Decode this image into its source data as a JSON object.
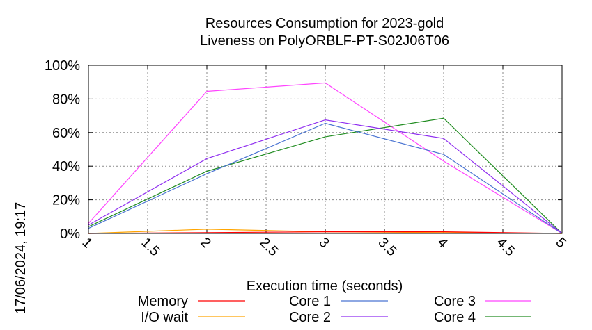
{
  "chart_data": {
    "type": "line",
    "title_line1": "Resources Consumption for 2023-gold",
    "title_line2": "Liveness on PolyORBLF-PT-S02J06T06",
    "xlabel": "Execution time (seconds)",
    "ylabel": "",
    "timestamp": "17/06/2024, 19:17",
    "xlim": [
      1,
      5
    ],
    "ylim": [
      0,
      100
    ],
    "grid": true,
    "legend_placement": "bottom",
    "x_ticks": [
      "1",
      "1.5",
      "2",
      "2.5",
      "3",
      "3.5",
      "4",
      "4.5",
      "5"
    ],
    "y_ticks": [
      "0%",
      "20%",
      "40%",
      "60%",
      "80%",
      "100%"
    ],
    "series": [
      {
        "name": "Memory",
        "color": "#ff0000",
        "x": [
          1,
          2,
          3,
          4,
          5
        ],
        "values": [
          0,
          0.5,
          1,
          1,
          0
        ]
      },
      {
        "name": "I/O wait",
        "color": "#ffa500",
        "x": [
          1,
          2,
          3,
          4,
          5
        ],
        "values": [
          0,
          2.5,
          1,
          0.5,
          0
        ]
      },
      {
        "name": "Core 1",
        "color": "#4a74d2",
        "x": [
          1,
          2,
          3,
          4,
          5
        ],
        "values": [
          3,
          35.5,
          65.5,
          47,
          0
        ]
      },
      {
        "name": "Core 2",
        "color": "#8f2ef0",
        "x": [
          1,
          2,
          3,
          4,
          5
        ],
        "values": [
          5,
          44.5,
          67.5,
          56.5,
          0
        ]
      },
      {
        "name": "Core 3",
        "color": "#ff44ff",
        "x": [
          1,
          2,
          3,
          4,
          5
        ],
        "values": [
          6,
          84.5,
          89.5,
          43,
          0
        ]
      },
      {
        "name": "Core 4",
        "color": "#208c20",
        "x": [
          1,
          2,
          3,
          4,
          5
        ],
        "values": [
          4,
          37,
          57.5,
          68.5,
          0
        ]
      }
    ]
  }
}
